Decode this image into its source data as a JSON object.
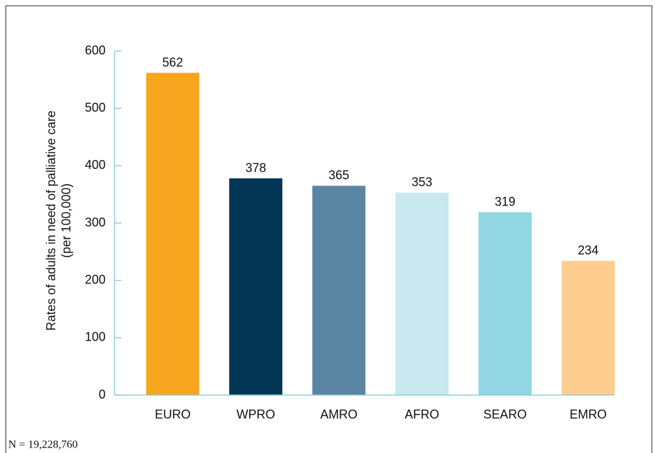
{
  "chart_data": {
    "type": "bar",
    "y_label": [
      "Rates of adults in need of palliative care",
      "(per 100,000)"
    ],
    "categories": [
      "EURO",
      "WPRO",
      "AMRO",
      "AFRO",
      "SEARO",
      "EMRO"
    ],
    "values": [
      562,
      378,
      365,
      353,
      319,
      234
    ],
    "colors": [
      "#f7a51e",
      "#023654",
      "#5a85a3",
      "#c9e8ef",
      "#92d6e3",
      "#fecd8f"
    ],
    "ylim": [
      0,
      600
    ],
    "yticks": [
      0,
      100,
      200,
      300,
      400,
      500,
      600
    ],
    "grid": false,
    "footnote": "N = 19,228,760"
  }
}
